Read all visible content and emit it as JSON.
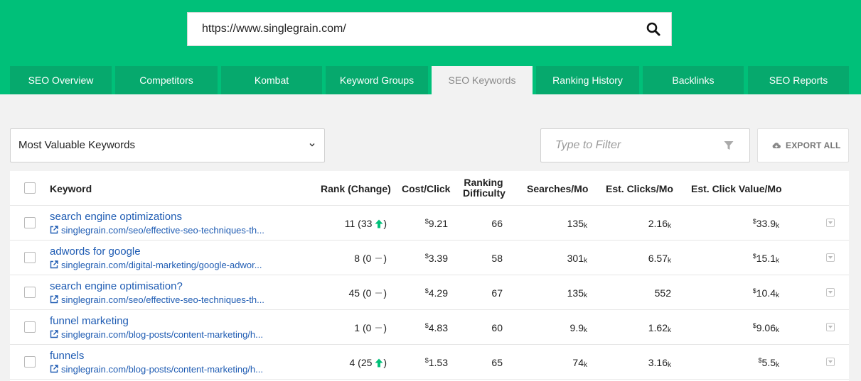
{
  "search": {
    "value": "https://www.singlegrain.com/",
    "button_icon": "search-icon"
  },
  "tabs": [
    {
      "label": "SEO Overview",
      "active": false
    },
    {
      "label": "Competitors",
      "active": false
    },
    {
      "label": "Kombat",
      "active": false
    },
    {
      "label": "Keyword Groups",
      "active": false
    },
    {
      "label": "SEO Keywords",
      "active": true
    },
    {
      "label": "Ranking History",
      "active": false
    },
    {
      "label": "Backlinks",
      "active": false
    },
    {
      "label": "SEO Reports",
      "active": false
    }
  ],
  "controls": {
    "keyword_view": "Most Valuable Keywords",
    "filter_placeholder": "Type to Filter",
    "export_label": "EXPORT ALL"
  },
  "table": {
    "headers": {
      "keyword": "Keyword",
      "rank": "Rank (Change)",
      "cpc": "Cost/Click",
      "difficulty_line1": "Ranking",
      "difficulty_line2": "Difficulty",
      "searches": "Searches/Mo",
      "clicks": "Est. Clicks/Mo",
      "value": "Est. Click Value/Mo"
    },
    "rows": [
      {
        "keyword": "search engine optimizations",
        "url": "singlegrain.com/seo/effective-seo-techniques-th...",
        "rank": "11",
        "change": "33",
        "trend": "up",
        "cpc": "9.21",
        "difficulty": "66",
        "searches": "135",
        "searches_unit": "k",
        "clicks": "2.16",
        "clicks_unit": "k",
        "value": "33.9",
        "value_unit": "k"
      },
      {
        "keyword": "adwords for google",
        "url": "singlegrain.com/digital-marketing/google-adwor...",
        "rank": "8",
        "change": "0",
        "trend": "none",
        "cpc": "3.39",
        "difficulty": "58",
        "searches": "301",
        "searches_unit": "k",
        "clicks": "6.57",
        "clicks_unit": "k",
        "value": "15.1",
        "value_unit": "k"
      },
      {
        "keyword": "search engine optimisation?",
        "url": "singlegrain.com/seo/effective-seo-techniques-th...",
        "rank": "45",
        "change": "0",
        "trend": "none",
        "cpc": "4.29",
        "difficulty": "67",
        "searches": "135",
        "searches_unit": "k",
        "clicks": "552",
        "clicks_unit": "",
        "value": "10.4",
        "value_unit": "k"
      },
      {
        "keyword": "funnel marketing",
        "url": "singlegrain.com/blog-posts/content-marketing/h...",
        "rank": "1",
        "change": "0",
        "trend": "none",
        "cpc": "4.83",
        "difficulty": "60",
        "searches": "9.9",
        "searches_unit": "k",
        "clicks": "1.62",
        "clicks_unit": "k",
        "value": "9.06",
        "value_unit": "k"
      },
      {
        "keyword": "funnels",
        "url": "singlegrain.com/blog-posts/content-marketing/h...",
        "rank": "4",
        "change": "25",
        "trend": "up",
        "cpc": "1.53",
        "difficulty": "65",
        "searches": "74",
        "searches_unit": "k",
        "clicks": "3.16",
        "clicks_unit": "k",
        "value": "5.5",
        "value_unit": "k"
      }
    ],
    "currency_symbol": "$"
  },
  "colors": {
    "brand_green": "#00c079",
    "tab_green": "#06a96d",
    "link_blue": "#1f5cb3",
    "trend_up": "#00c079"
  }
}
